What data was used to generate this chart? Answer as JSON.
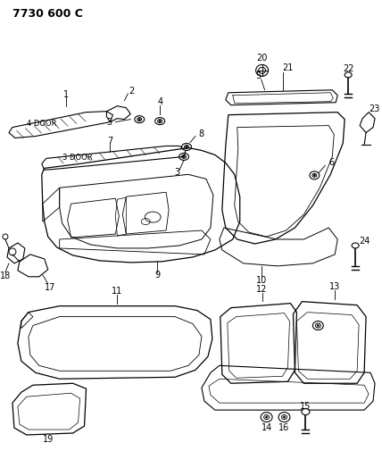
{
  "title": "7730 600 C",
  "bg_color": "#ffffff",
  "line_color": "#000000",
  "title_fontsize": 9,
  "label_fontsize": 7,
  "fig_width": 4.28,
  "fig_height": 5.33,
  "dpi": 100
}
